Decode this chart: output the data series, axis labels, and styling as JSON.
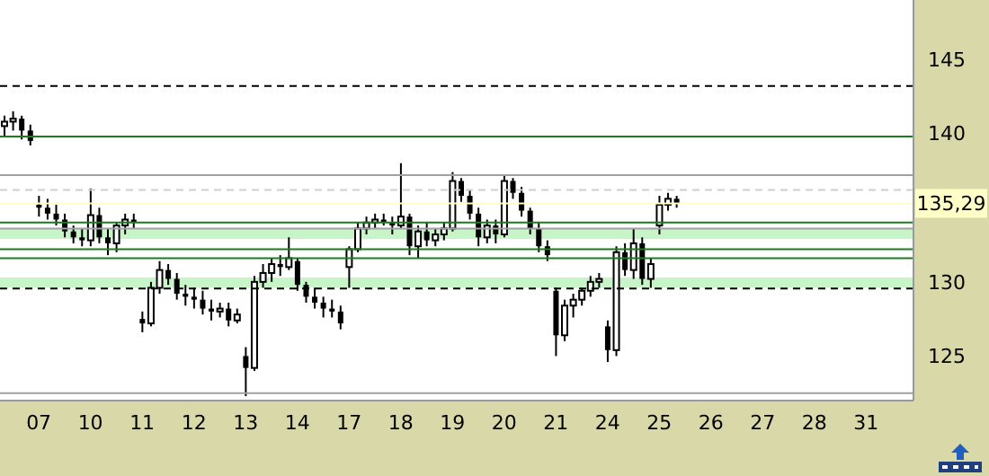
{
  "chart_data": {
    "type": "candlestick",
    "color": "#000000",
    "categories": [
      null,
      null,
      null,
      null,
      "07",
      null,
      null,
      null,
      null,
      null,
      "10",
      null,
      null,
      null,
      null,
      null,
      "11",
      null,
      null,
      null,
      null,
      null,
      "12",
      null,
      null,
      null,
      null,
      null,
      "13",
      null,
      null,
      null,
      null,
      null,
      "14",
      null,
      null,
      null,
      null,
      null,
      "17",
      null,
      null,
      null,
      null,
      null,
      "18",
      null,
      null,
      null,
      null,
      null,
      "19",
      null,
      null,
      null,
      null,
      null,
      "20",
      null,
      null,
      null,
      null,
      null,
      "21",
      null,
      null,
      null,
      null,
      null,
      "24",
      null,
      null,
      null,
      null,
      null,
      "25",
      null,
      null,
      null,
      null,
      null,
      "26",
      null,
      null,
      null,
      null,
      null,
      "27",
      null,
      null,
      null,
      null,
      null,
      "28",
      null,
      null,
      null,
      null,
      null,
      "31",
      null,
      null,
      null,
      null,
      null
    ],
    "ohlc": [
      [
        140.5,
        141.2,
        139.8,
        140.8
      ],
      [
        140.8,
        141.5,
        140.2,
        141
      ],
      [
        141,
        141.2,
        139.6,
        140.2
      ],
      [
        140.2,
        140.6,
        139.2,
        139.5
      ],
      [
        135.2,
        135.8,
        134.4,
        135
      ],
      [
        135,
        135.6,
        134.2,
        134.6
      ],
      [
        134.6,
        135.2,
        133.8,
        134.2
      ],
      [
        134.2,
        134.6,
        133,
        133.4
      ],
      [
        133.4,
        133.8,
        132.6,
        133
      ],
      [
        133,
        133.6,
        132.4,
        132.8
      ],
      [
        132.8,
        136.3,
        132.4,
        134.5
      ],
      [
        134.5,
        135,
        132.6,
        133
      ],
      [
        133,
        133.6,
        131.8,
        132.6
      ],
      [
        132.6,
        134,
        132,
        133.8
      ],
      [
        133.8,
        134.6,
        133.2,
        134.2
      ],
      [
        134.2,
        134.6,
        133.6,
        134
      ],
      [
        127.5,
        128,
        126.6,
        127.2
      ],
      [
        127.2,
        130,
        127,
        129.6
      ],
      [
        129.6,
        131.4,
        129.2,
        130.8
      ],
      [
        130.8,
        131.2,
        129.8,
        130.2
      ],
      [
        130.2,
        130.6,
        128.8,
        129.2
      ],
      [
        129.2,
        129.8,
        128.4,
        129
      ],
      [
        129,
        129.6,
        128.2,
        128.8
      ],
      [
        128.8,
        129.4,
        127.8,
        128.2
      ],
      [
        128.2,
        128.8,
        127.4,
        128
      ],
      [
        128,
        128.6,
        127.6,
        128.2
      ],
      [
        128.2,
        128.6,
        127,
        127.4
      ],
      [
        127.4,
        128.2,
        127.2,
        127.8
      ],
      [
        125,
        125.6,
        122.3,
        124.2
      ],
      [
        124.2,
        130.4,
        124,
        130
      ],
      [
        130,
        131.2,
        129.6,
        130.6
      ],
      [
        130.6,
        131.6,
        130,
        131.2
      ],
      [
        131.2,
        131.8,
        130.4,
        131
      ],
      [
        131,
        133,
        130.8,
        131.6
      ],
      [
        131.4,
        131.6,
        129.4,
        129.8
      ],
      [
        129.8,
        130,
        128.6,
        129
      ],
      [
        129,
        129.6,
        128.2,
        128.6
      ],
      [
        128.6,
        129,
        127.6,
        128.2
      ],
      [
        128.2,
        128.8,
        127.6,
        128
      ],
      [
        128,
        128.4,
        126.8,
        127.2
      ],
      [
        131,
        132.4,
        129.6,
        132.2
      ],
      [
        132.2,
        134,
        132,
        133.6
      ],
      [
        133.6,
        134.4,
        133.2,
        134
      ],
      [
        134,
        134.6,
        133.6,
        134.2
      ],
      [
        134.2,
        134.6,
        133.8,
        134
      ],
      [
        134,
        134.4,
        133.2,
        133.8
      ],
      [
        133.8,
        138,
        133.6,
        134.4
      ],
      [
        134.4,
        134.6,
        131.8,
        132.4
      ],
      [
        132.4,
        133.8,
        131.6,
        133.4
      ],
      [
        133.4,
        134,
        132.4,
        132.8
      ],
      [
        132.8,
        133.6,
        132.4,
        133.2
      ],
      [
        133.2,
        134,
        132.8,
        133.6
      ],
      [
        133.6,
        137.4,
        133.4,
        136.8
      ],
      [
        136.8,
        137,
        135.4,
        135.8
      ],
      [
        135.8,
        136.2,
        134.2,
        134.6
      ],
      [
        134.6,
        135,
        132.4,
        133
      ],
      [
        133,
        134.2,
        132.6,
        133.8
      ],
      [
        133.8,
        134.2,
        132.6,
        133.2
      ],
      [
        133.2,
        137.2,
        133,
        136.8
      ],
      [
        136.8,
        137,
        135.6,
        136
      ],
      [
        136,
        136.4,
        134.4,
        134.8
      ],
      [
        134.8,
        135,
        133.2,
        133.6
      ],
      [
        133.6,
        134,
        132,
        132.4
      ],
      [
        132.4,
        132.8,
        131.4,
        131.8
      ],
      [
        129.4,
        129.6,
        125,
        126.4
      ],
      [
        126.4,
        128.8,
        126,
        128.4
      ],
      [
        128.4,
        129.2,
        127.6,
        128.8
      ],
      [
        128.8,
        129.6,
        128.4,
        129.4
      ],
      [
        129.4,
        130.4,
        129,
        130
      ],
      [
        130,
        130.6,
        129.6,
        130.2
      ],
      [
        127,
        127.4,
        124.6,
        125.4
      ],
      [
        125.4,
        132.4,
        125,
        132
      ],
      [
        132,
        132.6,
        130.4,
        130.8
      ],
      [
        130.8,
        133.6,
        130.2,
        132.6
      ],
      [
        132.6,
        133,
        129.8,
        130.2
      ],
      [
        130.2,
        131.6,
        129.6,
        131.2
      ],
      [
        133.8,
        135.8,
        133.2,
        135.2
      ],
      [
        135.2,
        136,
        134.8,
        135.6
      ],
      [
        135.6,
        135.8,
        135,
        135.29
      ],
      null,
      null,
      null,
      null,
      null,
      null,
      null,
      null,
      null,
      null,
      null,
      null,
      null,
      null,
      null,
      null,
      null,
      null,
      null,
      null,
      null,
      null,
      null,
      null,
      null,
      null,
      null
    ],
    "ylim": [
      122,
      149
    ],
    "yticks": [
      125,
      130,
      140,
      145
    ],
    "ref_lines": [
      {
        "axis": "y",
        "value": 143.2,
        "color": "#000000",
        "line_style": "dashed"
      },
      {
        "axis": "y",
        "value": 139.8,
        "color": "#1e7b1e"
      },
      {
        "axis": "y",
        "value": 137.2,
        "color": "#a0a0a0"
      },
      {
        "axis": "y",
        "value": 136.2,
        "color": "#d0d0d0",
        "line_style": "dashed"
      },
      {
        "axis": "y",
        "value": 134.0,
        "color": "#1e7b1e"
      },
      {
        "axis": "y",
        "value": 133.6,
        "color": "#a0a0a0"
      },
      {
        "axis": "y",
        "value": 132.2,
        "color": "#1e7b1e"
      },
      {
        "axis": "y",
        "value": 131.6,
        "color": "#1e7b1e"
      },
      {
        "axis": "y",
        "value": 129.55,
        "color": "#000000",
        "line_style": "dashed"
      },
      {
        "axis": "y",
        "value": 122.5,
        "color": "#a0a0a0"
      },
      {
        "axis": "y",
        "value": 135.29,
        "label": "135,29",
        "color": "#ffffc8"
      }
    ],
    "bands": [
      {
        "axis": "y",
        "from": 132.9,
        "to": 133.6,
        "color": "#c8f5c8"
      },
      {
        "axis": "y",
        "from": 129.6,
        "to": 130.3,
        "color": "#c8f5c8"
      }
    ]
  }
}
